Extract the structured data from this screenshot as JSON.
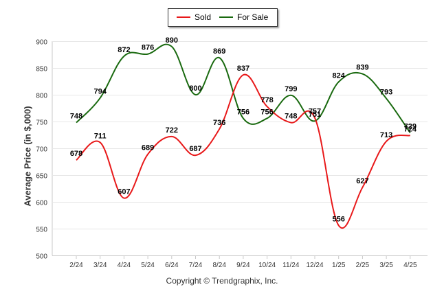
{
  "chart_data": {
    "type": "line",
    "title": "",
    "xlabel": "",
    "ylabel": "Average Price (in $,000)",
    "ylim": [
      500,
      900
    ],
    "yticks": [
      500,
      550,
      600,
      650,
      700,
      750,
      800,
      850,
      900
    ],
    "grid": true,
    "legend_position": "top-center",
    "categories": [
      "2/24",
      "3/24",
      "4/24",
      "5/24",
      "6/24",
      "7/24",
      "8/24",
      "9/24",
      "10/24",
      "11/24",
      "12/24",
      "1/25",
      "2/25",
      "3/25",
      "4/25"
    ],
    "series": [
      {
        "name": "Sold",
        "color": "#e8191a",
        "values": [
          678,
          711,
          607,
          689,
          722,
          687,
          736,
          837,
          778,
          748,
          757,
          556,
          627,
          713,
          724
        ]
      },
      {
        "name": "For Sale",
        "color": "#1a6a10",
        "values": [
          748,
          794,
          872,
          876,
          890,
          800,
          869,
          756,
          756,
          799,
          751,
          824,
          839,
          793,
          729
        ]
      }
    ]
  },
  "footer": {
    "copyright": "Copyright © Trendgraphix, Inc."
  }
}
